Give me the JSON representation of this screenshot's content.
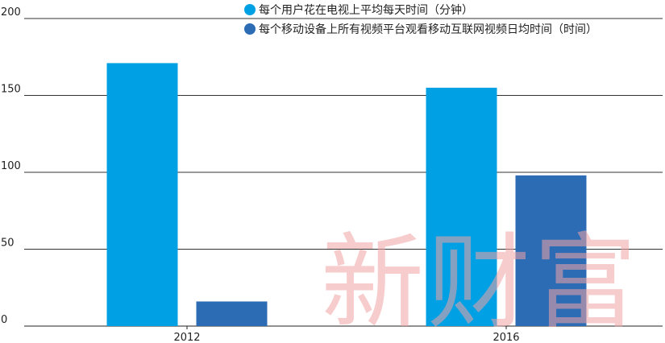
{
  "chart_data": {
    "type": "bar",
    "categories": [
      "2012",
      "2016"
    ],
    "series": [
      {
        "name": "每个用户花在电视上平均每天时间（分钟）",
        "values": [
          171,
          155
        ],
        "color": "#00a0e4"
      },
      {
        "name": "每个移动设备上所有视频平台观看移动互联网视频日均时间（时间）",
        "values": [
          16,
          98
        ],
        "color": "#2b6cb5"
      }
    ],
    "yticks": [
      "200",
      "150",
      "100",
      "50",
      "0"
    ],
    "ylim": [
      0,
      200
    ],
    "grid": true,
    "legend_position": "top-right",
    "title": "",
    "xlabel": "",
    "ylabel": ""
  },
  "watermark": {
    "text": "新财富"
  }
}
